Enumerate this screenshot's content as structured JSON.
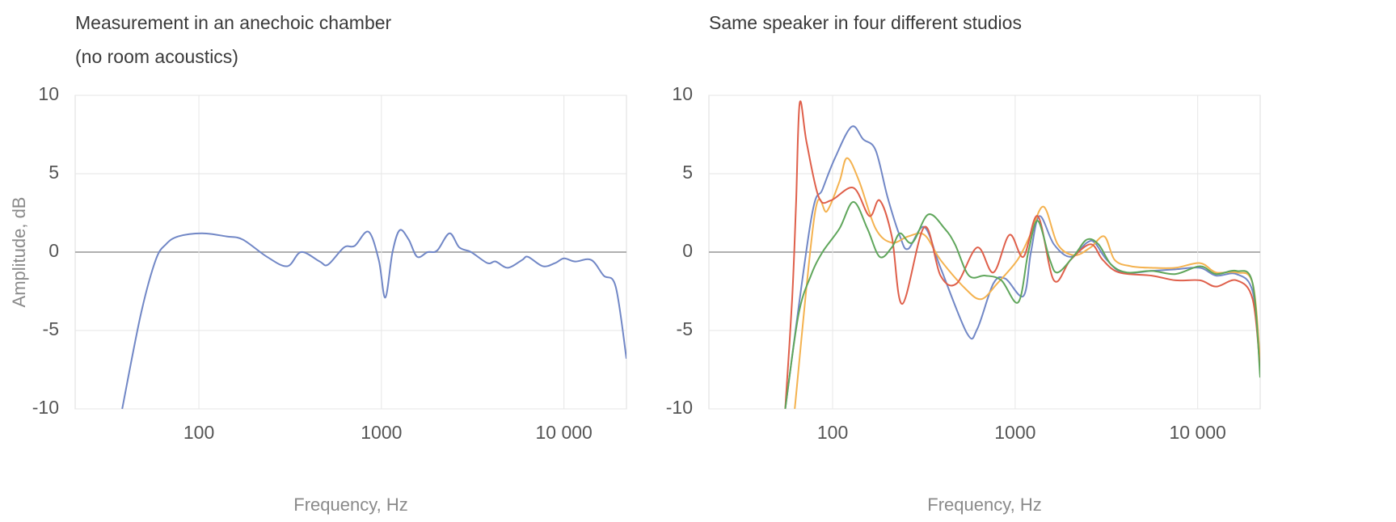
{
  "chart_data": [
    {
      "type": "line",
      "title": [
        "Measurement in an anechoic chamber",
        "(no room acoustics)"
      ],
      "xlabel": "Frequency, Hz",
      "ylabel": "Amplitude, dB",
      "xscale": "log",
      "xlim": [
        21,
        22000
      ],
      "ylim": [
        -10,
        10
      ],
      "xticks": [
        100,
        1000,
        {
          "value": 10000,
          "label": "10 000"
        }
      ],
      "yticks": [
        10,
        5,
        0,
        -5,
        -10
      ],
      "grid": true,
      "zero_line": true,
      "color": "#7187c6",
      "x": [
        38,
        48,
        58,
        66,
        77,
        104,
        142,
        174,
        236,
        305,
        363,
        459,
        510,
        624,
        714,
        849,
        967,
        1050,
        1150,
        1260,
        1410,
        1570,
        1790,
        2020,
        2360,
        2670,
        3100,
        3810,
        4220,
        4930,
        5900,
        6350,
        7660,
        8940,
        10000,
        11500,
        14100,
        16500,
        19200,
        22000
      ],
      "values": [
        -10,
        -4,
        -0.5,
        0.5,
        1,
        1.2,
        1,
        0.8,
        -0.3,
        -0.9,
        0,
        -0.6,
        -0.8,
        0.3,
        0.4,
        1.3,
        -0.5,
        -2.9,
        0,
        1.4,
        0.8,
        -0.3,
        0,
        0.1,
        1.2,
        0.3,
        0,
        -0.7,
        -0.6,
        -1,
        -0.5,
        -0.3,
        -0.9,
        -0.7,
        -0.4,
        -0.6,
        -0.5,
        -1.5,
        -2.2,
        -6.8
      ]
    },
    {
      "type": "line",
      "title": [
        "Same speaker in four different studios"
      ],
      "xlabel": "Frequency, Hz",
      "xscale": "log",
      "xlim": [
        21,
        22000
      ],
      "ylim": [
        -10,
        10
      ],
      "xticks": [
        100,
        1000,
        {
          "value": 10000,
          "label": "10 000"
        }
      ],
      "yticks": [
        10,
        5,
        0,
        -5,
        -10
      ],
      "grid": true,
      "zero_line": true,
      "series": [
        {
          "color": "#7187c6",
          "x": [
            55,
            76,
            88,
            103,
            127,
            147,
            172,
            200,
            234,
            259,
            318,
            390,
            546,
            620,
            760,
            885,
            1110,
            1220,
            1360,
            1630,
            2010,
            2470,
            2730,
            3180,
            3900,
            5590,
            7560,
            10300,
            12600,
            16300,
            20000,
            22000
          ],
          "values": [
            -10,
            2,
            4,
            6,
            8,
            7.2,
            6.5,
            3.5,
            1,
            0.2,
            1.6,
            -1,
            -5.2,
            -4.9,
            -2,
            -1.7,
            -2.8,
            0,
            2.3,
            0.5,
            -0.3,
            0.6,
            0.6,
            -0.5,
            -1.3,
            -1.2,
            -1.1,
            -1,
            -1.5,
            -1.4,
            -2.5,
            -7
          ]
        },
        {
          "color": "#f4b24f",
          "x": [
            62,
            80,
            93,
            109,
            120,
            140,
            172,
            211,
            259,
            318,
            390,
            530,
            651,
            798,
            1030,
            1200,
            1430,
            1710,
            2110,
            2590,
            3080,
            3510,
            4310,
            5590,
            7560,
            10300,
            12600,
            16300,
            20000,
            22000
          ],
          "values": [
            -10,
            2.5,
            2.6,
            4.5,
            6,
            4.5,
            1.5,
            0.6,
            1,
            1.1,
            -0.5,
            -2.3,
            -3,
            -2,
            -0.5,
            1,
            2.9,
            0.5,
            -0.2,
            0.3,
            1,
            -0.5,
            -0.9,
            -1,
            -1,
            -0.7,
            -1.3,
            -1.3,
            -2,
            -7
          ]
        },
        {
          "color": "#df5f4a",
          "x": [
            55,
            60,
            63,
            66,
            72,
            84,
            98,
            130,
            159,
            181,
            211,
            241,
            318,
            390,
            478,
            620,
            760,
            931,
            1110,
            1330,
            1630,
            2010,
            2590,
            3020,
            3710,
            5590,
            7560,
            10300,
            12600,
            16300,
            20000,
            22000
          ],
          "values": [
            -10,
            -3,
            3,
            9.5,
            7,
            3.5,
            3.3,
            4.1,
            2.3,
            3.3,
            1,
            -3.3,
            1.6,
            -1.5,
            -2,
            0.3,
            -1.3,
            1.1,
            -0.3,
            2.3,
            -1.8,
            -0.5,
            0.5,
            -0.5,
            -1.3,
            -1.5,
            -1.8,
            -1.8,
            -2.2,
            -1.8,
            -3,
            -7.5
          ]
        },
        {
          "color": "#5fa65b",
          "x": [
            55,
            65,
            76,
            88,
            109,
            130,
            155,
            181,
            211,
            234,
            273,
            334,
            411,
            468,
            558,
            685,
            840,
            1040,
            1180,
            1330,
            1550,
            1710,
            2110,
            2470,
            2860,
            3360,
            4100,
            5590,
            7560,
            10300,
            12600,
            16300,
            20000,
            22000
          ],
          "values": [
            -10,
            -4,
            -1.5,
            0,
            1.5,
            3.2,
            1.5,
            -0.3,
            0.3,
            1.2,
            0.6,
            2.4,
            1.5,
            0.5,
            -1.5,
            -1.5,
            -1.8,
            -3.2,
            0,
            2,
            -0.5,
            -1.3,
            -0.2,
            0.8,
            0.5,
            -0.8,
            -1.3,
            -1.2,
            -1.4,
            -0.9,
            -1.4,
            -1.2,
            -2,
            -8
          ]
        }
      ]
    }
  ]
}
